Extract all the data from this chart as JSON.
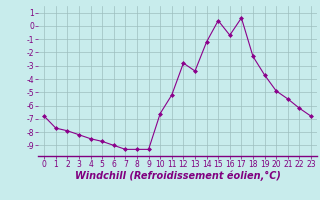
{
  "x": [
    0,
    1,
    2,
    3,
    4,
    5,
    6,
    7,
    8,
    9,
    10,
    11,
    12,
    13,
    14,
    15,
    16,
    17,
    18,
    19,
    20,
    21,
    22,
    23
  ],
  "y": [
    -6.8,
    -7.7,
    -7.9,
    -8.2,
    -8.5,
    -8.7,
    -9.0,
    -9.3,
    -9.3,
    -9.3,
    -6.6,
    -5.2,
    -2.8,
    -3.4,
    -1.2,
    0.4,
    -0.7,
    0.6,
    -2.3,
    -3.7,
    -4.9,
    -5.5,
    -6.2,
    -6.8
  ],
  "line_color": "#8b008b",
  "marker": "D",
  "marker_size": 2,
  "bg_color": "#c8ecec",
  "grid_color": "#9dbfbf",
  "xlabel": "Windchill (Refroidissement éolien,°C)",
  "xlabel_fontsize": 7,
  "tick_color": "#800080",
  "ylim": [
    -9.8,
    1.5
  ],
  "xlim": [
    -0.5,
    23.5
  ],
  "yticks": [
    1,
    0,
    -1,
    -2,
    -3,
    -4,
    -5,
    -6,
    -7,
    -8,
    -9
  ],
  "xticks": [
    0,
    1,
    2,
    3,
    4,
    5,
    6,
    7,
    8,
    9,
    10,
    11,
    12,
    13,
    14,
    15,
    16,
    17,
    18,
    19,
    20,
    21,
    22,
    23
  ],
  "tick_fontsize": 5.5
}
